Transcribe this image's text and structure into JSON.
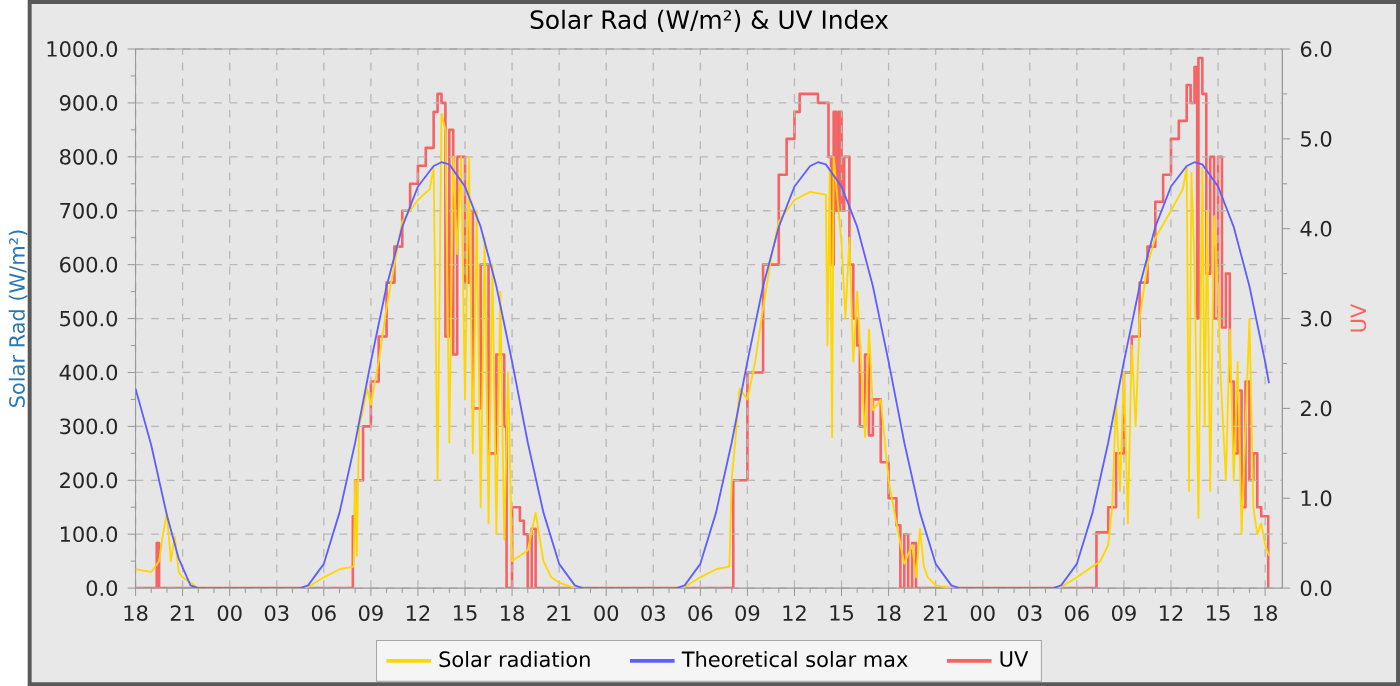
{
  "chart_data": {
    "type": "line",
    "title": "Solar Rad (W/m²) &  UV Index",
    "ylabel": "Solar Rad (W/m²)",
    "y2label": "UV",
    "xlim": [
      18,
      91.1
    ],
    "xticks": [
      {
        "value": 18,
        "label": "18"
      },
      {
        "value": 21,
        "label": "21"
      },
      {
        "value": 24,
        "label": "00"
      },
      {
        "value": 27,
        "label": "03"
      },
      {
        "value": 30,
        "label": "06"
      },
      {
        "value": 33,
        "label": "09"
      },
      {
        "value": 36,
        "label": "12"
      },
      {
        "value": 39,
        "label": "15"
      },
      {
        "value": 42,
        "label": "18"
      },
      {
        "value": 45,
        "label": "21"
      },
      {
        "value": 48,
        "label": "00"
      },
      {
        "value": 51,
        "label": "03"
      },
      {
        "value": 54,
        "label": "06"
      },
      {
        "value": 57,
        "label": "09"
      },
      {
        "value": 60,
        "label": "12"
      },
      {
        "value": 63,
        "label": "15"
      },
      {
        "value": 66,
        "label": "18"
      },
      {
        "value": 69,
        "label": "21"
      },
      {
        "value": 72,
        "label": "00"
      },
      {
        "value": 75,
        "label": "03"
      },
      {
        "value": 78,
        "label": "06"
      },
      {
        "value": 81,
        "label": "09"
      },
      {
        "value": 84,
        "label": "12"
      },
      {
        "value": 87,
        "label": "15"
      },
      {
        "value": 90,
        "label": "18"
      }
    ],
    "ylim": [
      0,
      1000
    ],
    "yticks": [
      {
        "value": 0,
        "label": "0.0"
      },
      {
        "value": 100,
        "label": "100.0"
      },
      {
        "value": 200,
        "label": "200.0"
      },
      {
        "value": 300,
        "label": "300.0"
      },
      {
        "value": 400,
        "label": "400.0"
      },
      {
        "value": 500,
        "label": "500.0"
      },
      {
        "value": 600,
        "label": "600.0"
      },
      {
        "value": 700,
        "label": "700.0"
      },
      {
        "value": 800,
        "label": "800.0"
      },
      {
        "value": 900,
        "label": "900.0"
      },
      {
        "value": 1000,
        "label": "1000.0"
      }
    ],
    "y2lim": [
      0,
      6
    ],
    "y2ticks": [
      {
        "value": 0,
        "label": "0.0"
      },
      {
        "value": 1,
        "label": "1.0"
      },
      {
        "value": 2,
        "label": "2.0"
      },
      {
        "value": 3,
        "label": "3.0"
      },
      {
        "value": 4,
        "label": "4.0"
      },
      {
        "value": 5,
        "label": "5.0"
      },
      {
        "value": 6,
        "label": "6.0"
      }
    ],
    "grid": true,
    "legend": "bottom",
    "series": [
      {
        "name": "Solar radiation",
        "color": "#ffd700",
        "x": [
          18,
          19,
          19.5,
          19.75,
          20,
          20.25,
          20.5,
          20.75,
          21,
          21.5,
          22,
          28.75,
          29,
          30,
          31,
          31.9,
          32,
          32.1,
          32.25,
          32.5,
          32.75,
          33,
          33.5,
          34,
          34.5,
          35,
          36,
          36.75,
          37,
          37.25,
          37.5,
          37.75,
          38,
          38.25,
          38.5,
          38.75,
          39,
          39.25,
          39.5,
          39.75,
          40,
          40.25,
          40.5,
          40.75,
          41,
          41.25,
          41.5,
          41.75,
          42,
          42.5,
          43,
          43.5,
          44,
          44.5,
          45,
          46,
          52.75,
          53,
          54,
          55,
          55.85,
          56,
          56.25,
          56.5,
          57,
          57.5,
          58,
          58.5,
          59,
          60,
          61,
          62,
          62.1,
          62.25,
          62.4,
          62.5,
          63,
          63.25,
          63.5,
          63.75,
          64,
          64.5,
          64.75,
          65,
          65.5,
          66,
          66.5,
          67,
          67.5,
          67.75,
          68,
          68.25,
          68.5,
          69,
          70,
          76.75,
          77,
          78,
          79,
          79.5,
          80,
          80.25,
          80.5,
          80.75,
          81,
          81.25,
          81.5,
          81.75,
          82,
          82.5,
          83,
          84,
          84.75,
          85,
          85.15,
          85.3,
          85.5,
          85.75,
          86,
          86.15,
          86.3,
          86.5,
          86.75,
          87,
          87.15,
          87.5,
          87.75,
          88,
          88.25,
          88.5,
          88.75,
          89,
          89.25,
          89.5,
          89.75,
          90,
          90.25
        ],
        "values": [
          35,
          30,
          50,
          100,
          140,
          50,
          95,
          30,
          20,
          10,
          0,
          0,
          2,
          20,
          35,
          40,
          200,
          60,
          300,
          330,
          370,
          340,
          420,
          520,
          600,
          680,
          720,
          740,
          780,
          200,
          880,
          850,
          270,
          800,
          620,
          800,
          350,
          800,
          250,
          700,
          150,
          650,
          120,
          600,
          100,
          550,
          90,
          400,
          50,
          60,
          70,
          140,
          50,
          20,
          10,
          0,
          0,
          2,
          20,
          35,
          40,
          200,
          280,
          370,
          350,
          420,
          520,
          610,
          680,
          720,
          735,
          730,
          450,
          780,
          280,
          800,
          640,
          500,
          650,
          420,
          550,
          280,
          480,
          330,
          350,
          200,
          120,
          45,
          80,
          20,
          110,
          40,
          20,
          5,
          0,
          0,
          2,
          20,
          40,
          50,
          80,
          150,
          350,
          180,
          400,
          120,
          450,
          300,
          500,
          600,
          650,
          700,
          740,
          780,
          180,
          770,
          600,
          130,
          780,
          300,
          700,
          180,
          690,
          550,
          400,
          200,
          480,
          200,
          420,
          100,
          300,
          500,
          150,
          100,
          120,
          80,
          60
        ]
      },
      {
        "name": "Theoretical solar max",
        "color": "#5f5fff",
        "x": [
          18,
          19,
          20,
          20.75,
          21.5,
          22,
          28.5,
          29,
          30,
          31,
          32,
          33,
          34,
          35,
          36,
          37,
          37.5,
          38,
          39,
          40,
          41,
          42,
          43,
          44,
          45,
          46,
          46.5,
          52.5,
          53,
          54,
          55,
          56,
          57,
          58,
          59,
          60,
          61,
          61.5,
          62,
          63,
          64,
          65,
          66,
          67,
          68,
          69,
          70,
          70.5,
          76.5,
          77,
          78,
          79,
          80,
          81,
          82,
          83,
          84,
          85,
          85.5,
          86,
          87,
          88,
          89,
          90,
          90.25
        ],
        "values": [
          370,
          265,
          135,
          55,
          5,
          0,
          0,
          5,
          45,
          140,
          270,
          420,
          560,
          670,
          745,
          783,
          790,
          786,
          745,
          670,
          560,
          420,
          270,
          140,
          45,
          5,
          0,
          0,
          5,
          45,
          140,
          270,
          420,
          560,
          670,
          745,
          783,
          790,
          786,
          745,
          670,
          560,
          420,
          270,
          140,
          45,
          5,
          0,
          0,
          5,
          45,
          140,
          270,
          420,
          560,
          670,
          745,
          783,
          790,
          786,
          745,
          670,
          560,
          420,
          380
        ]
      },
      {
        "name": "UV",
        "color": "#f46464",
        "type": "step",
        "axis": "y2",
        "x": [
          18,
          19.3,
          19.35,
          19.5,
          31.8,
          31.85,
          32,
          32.5,
          33,
          33.5,
          34,
          34.5,
          35,
          35.5,
          36,
          36.5,
          37,
          37.25,
          37.5,
          37.75,
          38,
          38.25,
          38.5,
          39,
          39.25,
          39.5,
          40,
          40.5,
          41,
          41.5,
          41.65,
          42,
          42.5,
          42.75,
          43,
          43.25,
          43.5,
          55.9,
          56.1,
          57,
          58,
          59,
          59.5,
          60,
          60.33,
          61.33,
          61.5,
          62,
          62.17,
          62.33,
          62.5,
          62.67,
          62.83,
          63,
          63.17,
          63.5,
          63.75,
          64,
          64.17,
          64.5,
          64.75,
          65,
          65.5,
          66,
          66.5,
          66.75,
          67,
          67.25,
          67.5,
          67.75,
          79.2,
          79.25,
          80,
          80.5,
          81,
          81.5,
          82,
          82.5,
          83,
          83.5,
          84,
          84.5,
          85,
          85.25,
          85.5,
          85.67,
          85.75,
          86,
          86.25,
          86.5,
          86.75,
          87,
          87.25,
          87.5,
          87.75,
          88,
          88.25,
          88.5,
          88.75,
          89,
          89.25,
          89.5,
          89.75,
          90,
          90.2
        ],
        "values": [
          0,
          0,
          0.5,
          0,
          0,
          0.8,
          1.2,
          1.8,
          2.3,
          2.8,
          3.4,
          3.8,
          4.2,
          4.5,
          4.7,
          4.9,
          5.3,
          5.5,
          5.4,
          2.8,
          5.1,
          2.6,
          4.8,
          3.4,
          4.2,
          2.0,
          3.6,
          1.5,
          2.6,
          1.8,
          0,
          0.9,
          0.75,
          0.6,
          0,
          0.66,
          0,
          0,
          1.2,
          2.4,
          3.6,
          4.6,
          5.0,
          5.3,
          5.5,
          5.5,
          5.4,
          5.4,
          4.8,
          3.6,
          5.3,
          4.2,
          5.3,
          4.2,
          4.8,
          3.6,
          3.0,
          2.7,
          1.8,
          2.6,
          1.7,
          2.1,
          1.4,
          1.0,
          0.7,
          0,
          0.6,
          0,
          0.5,
          0,
          0,
          0.62,
          0.9,
          1.5,
          2.4,
          2.8,
          3.4,
          3.8,
          4.3,
          4.6,
          5.0,
          5.2,
          5.6,
          5.4,
          5.8,
          3.0,
          5.9,
          5.5,
          3.5,
          4.8,
          3.0,
          4.8,
          2.9,
          3.5,
          2.3,
          1.5,
          2.2,
          0.9,
          2.3,
          1.2,
          1.5,
          0.9,
          0.8,
          0.8,
          0
        ]
      }
    ]
  }
}
